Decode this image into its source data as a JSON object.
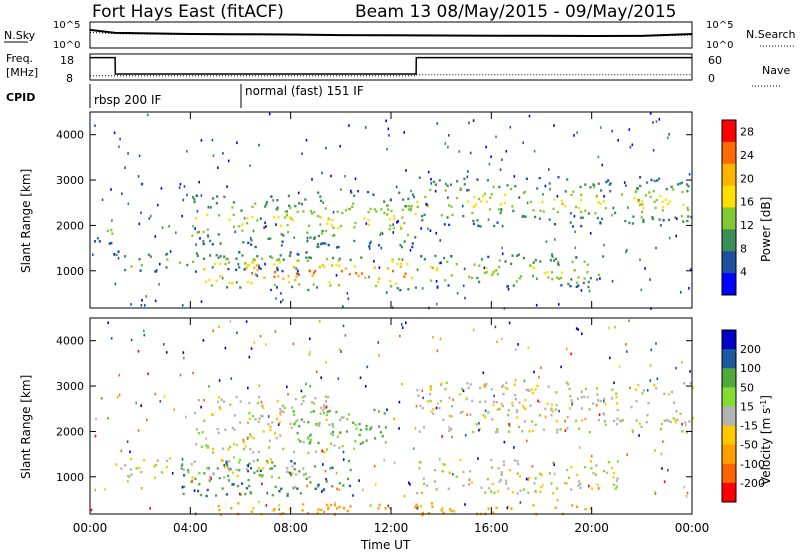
{
  "header": {
    "title": "Fort Hays East (fitACF)",
    "beam_info": "Beam 13 08/May/2015 - 09/May/2015"
  },
  "labels": {
    "nsky": "N.Sky",
    "nsearch": "N.Search",
    "freq_line1": "Freq.",
    "freq_line2": "[MHz]",
    "nave": "Nave",
    "cpid": "CPID",
    "nsky_tick_top": "10^5",
    "nsky_tick_bottom": "10^0",
    "nsearch_tick_top": "10^5",
    "nsearch_tick_bottom": "10^0",
    "freq_tick_top": "18",
    "freq_tick_bottom": "8",
    "nave_tick_top": "60",
    "nave_tick_bottom": "0"
  },
  "cpid_segments": [
    {
      "label": "rbsp 200 IF",
      "start_hour": 0
    },
    {
      "label": "normal (fast) 151 IF",
      "start_hour": 6
    }
  ],
  "colors": {
    "scale_colors": [
      "#ff0000",
      "#ff6a00",
      "#ffb400",
      "#ffe000",
      "#82c832",
      "#3c8c5a",
      "#1e50a0",
      "#0000ff"
    ],
    "velocity_colors": [
      "#0000c8",
      "#1e5aa0",
      "#50aa3c",
      "#82dc32",
      "#b4b4b4",
      "#ffc800",
      "#ffa000",
      "#ff6400",
      "#ff0000"
    ]
  },
  "chart_data": [
    {
      "type": "line",
      "panel": "N.Sky / N.Search",
      "y_scale": "log",
      "ylim": [
        1,
        100000
      ],
      "x_hours": [
        0,
        1,
        2,
        4,
        6,
        8,
        10,
        12,
        14,
        16,
        18,
        20,
        22,
        24
      ],
      "series": [
        {
          "name": "N.Sky",
          "values": [
            3000,
            800,
            700,
            500,
            450,
            400,
            300,
            280,
            250,
            230,
            220,
            200,
            210,
            500
          ]
        },
        {
          "name": "N.Search",
          "values": [
            1000,
            600,
            500,
            400,
            350,
            300,
            250,
            240,
            220,
            200,
            190,
            180,
            190,
            300
          ]
        }
      ]
    },
    {
      "type": "line",
      "panel": "Freq. / Nave",
      "ylim_freq": [
        8,
        18
      ],
      "ylim_nave": [
        0,
        60
      ],
      "x_hours": [
        0,
        1,
        1.01,
        13,
        13.01,
        24
      ],
      "series": [
        {
          "name": "Freq.",
          "values": [
            16.6,
            16.6,
            10.3,
            10.3,
            16.6,
            16.6
          ]
        },
        {
          "name": "Nave",
          "values": [
            10,
            10,
            10,
            10,
            12,
            12
          ]
        }
      ]
    },
    {
      "type": "heatmap",
      "panel": "Power",
      "xlabel": "",
      "ylabel": "Slant Range [km]",
      "xlim_hours": [
        0,
        24
      ],
      "ylim_km": [
        180,
        4500
      ],
      "yticks": [
        1000,
        2000,
        3000,
        4000
      ],
      "colorbar": {
        "label": "Power [dB]",
        "ticks": [
          4,
          8,
          12,
          16,
          20,
          24,
          28
        ],
        "range": [
          0,
          30
        ]
      },
      "bands": [
        {
          "t0": 4.5,
          "t1": 13.0,
          "r0": 600,
          "r1": 1350,
          "peak": 22
        },
        {
          "t0": 1.0,
          "t1": 9.0,
          "r0": 1000,
          "r1": 1450,
          "peak": 12
        },
        {
          "t0": 4.0,
          "t1": 9.5,
          "r0": 1550,
          "r1": 2700,
          "peak": 14
        },
        {
          "t0": 9.0,
          "t1": 13.0,
          "r0": 1500,
          "r1": 2800,
          "peak": 14
        },
        {
          "t0": 13.0,
          "t1": 24.0,
          "r0": 2000,
          "r1": 3100,
          "peak": 14
        },
        {
          "t0": 13.0,
          "t1": 20.5,
          "r0": 650,
          "r1": 1400,
          "peak": 14
        },
        {
          "t0": 0.0,
          "t1": 1.0,
          "r0": 1600,
          "r1": 2100,
          "peak": 12
        }
      ]
    },
    {
      "type": "heatmap",
      "panel": "Velocity",
      "xlabel": "Time UT",
      "ylabel": "Slant Range [km]",
      "xlim_hours": [
        0,
        24
      ],
      "xticks": [
        "00:00",
        "04:00",
        "08:00",
        "12:00",
        "16:00",
        "20:00",
        "00:00"
      ],
      "ylim_km": [
        180,
        4500
      ],
      "yticks": [
        1000,
        2000,
        3000,
        4000
      ],
      "colorbar": {
        "label": "Velocity [m s^-1]",
        "ticks": [
          200,
          100,
          50,
          15,
          -15,
          -50,
          -100,
          -200
        ]
      },
      "bands": [
        {
          "t0": 3.5,
          "t1": 10.5,
          "r0": 600,
          "r1": 1400,
          "value": 60
        },
        {
          "t0": 1.0,
          "t1": 9.0,
          "r0": 1000,
          "r1": 1450,
          "value": 0
        },
        {
          "t0": 4.0,
          "t1": 10.0,
          "r0": 1550,
          "r1": 2800,
          "value": 0
        },
        {
          "t0": 8.0,
          "t1": 12.0,
          "r0": 1700,
          "r1": 2500,
          "value": 40
        },
        {
          "t0": 13.0,
          "t1": 24.0,
          "r0": 2000,
          "r1": 3100,
          "value": 0
        },
        {
          "t0": 13.0,
          "t1": 21.0,
          "r0": 650,
          "r1": 1400,
          "value": 0
        },
        {
          "t0": 5.0,
          "t1": 20.0,
          "r0": 180,
          "r1": 450,
          "value": -70
        }
      ]
    }
  ]
}
